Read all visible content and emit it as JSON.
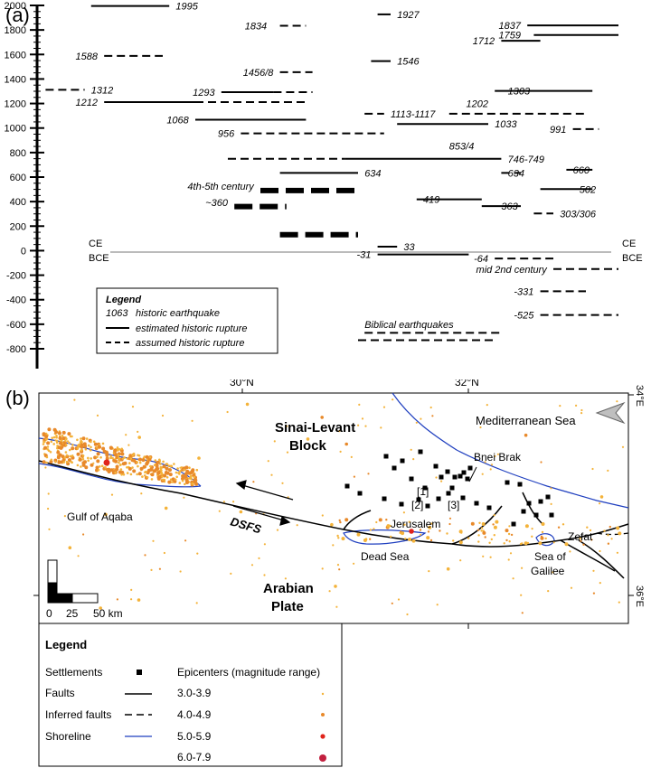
{
  "panel_a": {
    "label": "(a)",
    "ce_label": "CE",
    "bce_label": "BCE",
    "legend": {
      "title": "Legend",
      "key_label": "1063",
      "key_text": "historic earthquake",
      "solid_text": "estimated historic rupture",
      "dashed_text": "assumed historic rupture"
    },
    "annotations": [
      "4th-5th century",
      "~360",
      "Biblical earthquakes",
      "mid 2nd century"
    ]
  },
  "chart_data": {
    "type": "timeline",
    "title": "",
    "xlabel": "",
    "ylabel": "",
    "ylim": [
      -850,
      2000
    ],
    "yticks": [
      2000,
      1800,
      1600,
      1400,
      1200,
      1000,
      800,
      600,
      400,
      200,
      0,
      -200,
      -400,
      -600,
      -800
    ],
    "ytick_labels": [
      "2000",
      "1800",
      "1600",
      "1400",
      "1200",
      "1000",
      "800",
      "600",
      "400",
      "200",
      "0",
      "-200",
      "-400",
      "-600",
      "-800"
    ],
    "events": [
      {
        "label": "1995",
        "year": 1995,
        "x0": 0.14,
        "x1": 0.26,
        "style": "solid"
      },
      {
        "label": "1834",
        "year": 1834,
        "x0": 0.43,
        "x1": 0.47,
        "style": "dashed"
      },
      {
        "label": "1927",
        "year": 1927,
        "x0": 0.58,
        "x1": 0.6,
        "style": "solid"
      },
      {
        "label": "1837",
        "year": 1837,
        "x0": 0.81,
        "x1": 0.95,
        "style": "solid"
      },
      {
        "label": "1759",
        "year": 1759,
        "x0": 0.82,
        "x1": 0.95,
        "style": "solid"
      },
      {
        "label": "1712",
        "year": 1712,
        "x0": 0.77,
        "x1": 0.83,
        "style": "solid"
      },
      {
        "label": "1588",
        "year": 1588,
        "x0": 0.16,
        "x1": 0.25,
        "style": "dashed"
      },
      {
        "label": "1546",
        "year": 1546,
        "x0": 0.57,
        "x1": 0.6,
        "style": "solid"
      },
      {
        "label": "1456/8",
        "year": 1456,
        "x0": 0.43,
        "x1": 0.48,
        "style": "dashed"
      },
      {
        "label": "1312",
        "year": 1312,
        "x0": 0.07,
        "x1": 0.13,
        "style": "dashed"
      },
      {
        "label": "1293",
        "year": 1293,
        "x0": 0.34,
        "x1": 0.42,
        "style": "solid"
      },
      {
        "label": "1293",
        "year": 1293,
        "x0": 0.42,
        "x1": 0.48,
        "style": "dashed"
      },
      {
        "label": "1212",
        "year": 1212,
        "x0": 0.16,
        "x1": 0.3,
        "style": "solid"
      },
      {
        "label": "1212",
        "year": 1212,
        "x0": 0.3,
        "x1": 0.47,
        "style": "dashed"
      },
      {
        "label": "1303",
        "year": 1303,
        "x0": 0.76,
        "x1": 0.91,
        "style": "solid"
      },
      {
        "label": "1113-1117",
        "year": 1117,
        "x0": 0.56,
        "x1": 0.59,
        "style": "dashed"
      },
      {
        "label": "1113-1117",
        "year": 1117,
        "x0": 0.69,
        "x1": 0.9,
        "style": "dashed"
      },
      {
        "label": "1068",
        "year": 1068,
        "x0": 0.3,
        "x1": 0.47,
        "style": "solid"
      },
      {
        "label": "1033",
        "year": 1033,
        "x0": 0.61,
        "x1": 0.75,
        "style": "solid"
      },
      {
        "label": "991",
        "year": 991,
        "x0": 0.88,
        "x1": 0.92,
        "style": "dashed"
      },
      {
        "label": "956",
        "year": 956,
        "x0": 0.37,
        "x1": 0.59,
        "style": "dashed"
      },
      {
        "label": "746-749",
        "year": 749,
        "x0": 0.35,
        "x1": 0.53,
        "style": "dashed"
      },
      {
        "label": "746-749",
        "year": 749,
        "x0": 0.53,
        "x1": 0.77,
        "style": "solid"
      },
      {
        "label": "660",
        "year": 660,
        "x0": 0.87,
        "x1": 0.91,
        "style": "solid"
      },
      {
        "label": "634",
        "year": 634,
        "x0": 0.43,
        "x1": 0.55,
        "style": "solid"
      },
      {
        "label": "634",
        "year": 634,
        "x0": 0.77,
        "x1": 0.8,
        "style": "dashed"
      },
      {
        "label": "502",
        "year": 502,
        "x0": 0.83,
        "x1": 0.91,
        "style": "solid"
      },
      {
        "label": "4th-5th century",
        "year": 490,
        "x0": 0.4,
        "x1": 0.55,
        "style": "thick-dashed"
      },
      {
        "label": "419",
        "year": 419,
        "x0": 0.64,
        "x1": 0.74,
        "style": "solid"
      },
      {
        "label": "363",
        "year": 363,
        "x0": 0.74,
        "x1": 0.8,
        "style": "solid"
      },
      {
        "label": "~360",
        "year": 360,
        "x0": 0.36,
        "x1": 0.44,
        "style": "thick-dashed"
      },
      {
        "label": "303/306",
        "year": 303,
        "x0": 0.82,
        "x1": 0.85,
        "style": "dashed"
      },
      {
        "label": "4th-5th century",
        "year": 130,
        "x0": 0.43,
        "x1": 0.55,
        "style": "thick-dashed"
      },
      {
        "label": "33",
        "year": 33,
        "x0": 0.58,
        "x1": 0.61,
        "style": "solid"
      },
      {
        "label": "-31",
        "year": -31,
        "x0": 0.58,
        "x1": 0.72,
        "style": "solid"
      },
      {
        "label": "-64",
        "year": -64,
        "x0": 0.76,
        "x1": 0.85,
        "style": "dashed"
      },
      {
        "label": "mid 2nd century",
        "year": -150,
        "x0": 0.85,
        "x1": 0.95,
        "style": "dashed"
      },
      {
        "label": "-331",
        "year": -331,
        "x0": 0.83,
        "x1": 0.9,
        "style": "dashed"
      },
      {
        "label": "-525",
        "year": -525,
        "x0": 0.83,
        "x1": 0.95,
        "style": "dashed"
      },
      {
        "label": "Biblical earthquakes",
        "year": -670,
        "x0": 0.56,
        "x1": 0.77,
        "style": "dashed"
      },
      {
        "label": "Biblical earthquakes",
        "year": -730,
        "x0": 0.55,
        "x1": 0.76,
        "style": "dashed"
      }
    ],
    "event_labels": [
      {
        "text": "1995",
        "year": 1995,
        "x": 0.27
      },
      {
        "text": "1834",
        "year": 1834,
        "x": 0.41,
        "anchor": "end"
      },
      {
        "text": "1927",
        "year": 1927,
        "x": 0.61
      },
      {
        "text": "1837",
        "year": 1837,
        "x": 0.8,
        "anchor": "end"
      },
      {
        "text": "1759",
        "year": 1759,
        "x": 0.8,
        "anchor": "end"
      },
      {
        "text": "1712",
        "year": 1712,
        "x": 0.76,
        "anchor": "end"
      },
      {
        "text": "1588",
        "year": 1588,
        "x": 0.15,
        "anchor": "end"
      },
      {
        "text": "1546",
        "year": 1546,
        "x": 0.61
      },
      {
        "text": "1456/8",
        "year": 1456,
        "x": 0.42,
        "anchor": "end"
      },
      {
        "text": "1312",
        "year": 1312,
        "x": 0.14
      },
      {
        "text": "1293",
        "year": 1293,
        "x": 0.33,
        "anchor": "end"
      },
      {
        "text": "1212",
        "year": 1212,
        "x": 0.15,
        "anchor": "end"
      },
      {
        "text": "1303",
        "year": 1303,
        "x": 0.78
      },
      {
        "text": "1202",
        "year": 1202,
        "x": 0.75,
        "anchor": "end"
      },
      {
        "text": "1113-1117",
        "year": 1117,
        "x": 0.6
      },
      {
        "text": "1068",
        "year": 1068,
        "x": 0.29,
        "anchor": "end"
      },
      {
        "text": "1033",
        "year": 1033,
        "x": 0.76
      },
      {
        "text": "991",
        "year": 991,
        "x": 0.87,
        "anchor": "end"
      },
      {
        "text": "956",
        "year": 956,
        "x": 0.36,
        "anchor": "end"
      },
      {
        "text": "853/4",
        "year": 853,
        "x": 0.69
      },
      {
        "text": "746-749",
        "year": 749,
        "x": 0.78
      },
      {
        "text": "660",
        "year": 660,
        "x": 0.88
      },
      {
        "text": "634",
        "year": 634,
        "x": 0.56
      },
      {
        "text": "634",
        "year": 634,
        "x": 0.78
      },
      {
        "text": "502",
        "year": 502,
        "x": 0.89
      },
      {
        "text": "4th-5th century",
        "year": 525,
        "x": 0.39,
        "anchor": "end"
      },
      {
        "text": "419",
        "year": 419,
        "x": 0.65
      },
      {
        "text": "363",
        "year": 363,
        "x": 0.77
      },
      {
        "text": "~360",
        "year": 395,
        "x": 0.35,
        "anchor": "end"
      },
      {
        "text": "303/306",
        "year": 303,
        "x": 0.86
      },
      {
        "text": "33",
        "year": 33,
        "x": 0.62
      },
      {
        "text": "-31",
        "year": -31,
        "x": 0.57,
        "anchor": "end"
      },
      {
        "text": "-64",
        "year": -64,
        "x": 0.75,
        "anchor": "end"
      },
      {
        "text": "mid 2nd century",
        "year": -150,
        "x": 0.84,
        "anchor": "end"
      },
      {
        "text": "-331",
        "year": -331,
        "x": 0.82,
        "anchor": "end"
      },
      {
        "text": "-525",
        "year": -525,
        "x": 0.82,
        "anchor": "end"
      },
      {
        "text": "Biblical earthquakes",
        "year": -600,
        "x": 0.56
      }
    ]
  },
  "panel_b": {
    "label": "(b)",
    "lat_labels": [
      "30°N",
      "32°N"
    ],
    "lon_labels": [
      "34°E",
      "36°E"
    ],
    "place_labels": {
      "sinai": "Sinai-Levant",
      "block": "Block",
      "med": "Mediterranean Sea",
      "aqaba": "Gulf of Aqaba",
      "dsfs": "DSFS",
      "arabian": "Arabian",
      "plate": "Plate",
      "bnei_brak": "Bnei Brak",
      "jerusalem": "Jerusalem",
      "dead_sea": "Dead Sea",
      "galilee1": "Sea of",
      "galilee2": "Galilee",
      "zefat": "Zefat",
      "ref1": "[1]",
      "ref2": "[2]",
      "ref3": "[3]"
    },
    "scale": {
      "zero": "0",
      "mid": "25",
      "end": "50 km"
    },
    "legend": {
      "title": "Legend",
      "settlements": "Settlements",
      "faults": "Faults",
      "inferred": "Inferred faults",
      "shoreline": "Shoreline",
      "epicenters_title": "Epicenters (magnitude range)",
      "mag_ranges": [
        "3.0-3.9",
        "4.0-4.9",
        "5.0-5.9",
        "6.0-7.9"
      ]
    },
    "colors": {
      "shoreline": "#1f3fbf",
      "mag1": "#f4b33a",
      "mag2": "#e8892a",
      "mag3": "#e0241b",
      "mag4": "#c2203f"
    }
  }
}
